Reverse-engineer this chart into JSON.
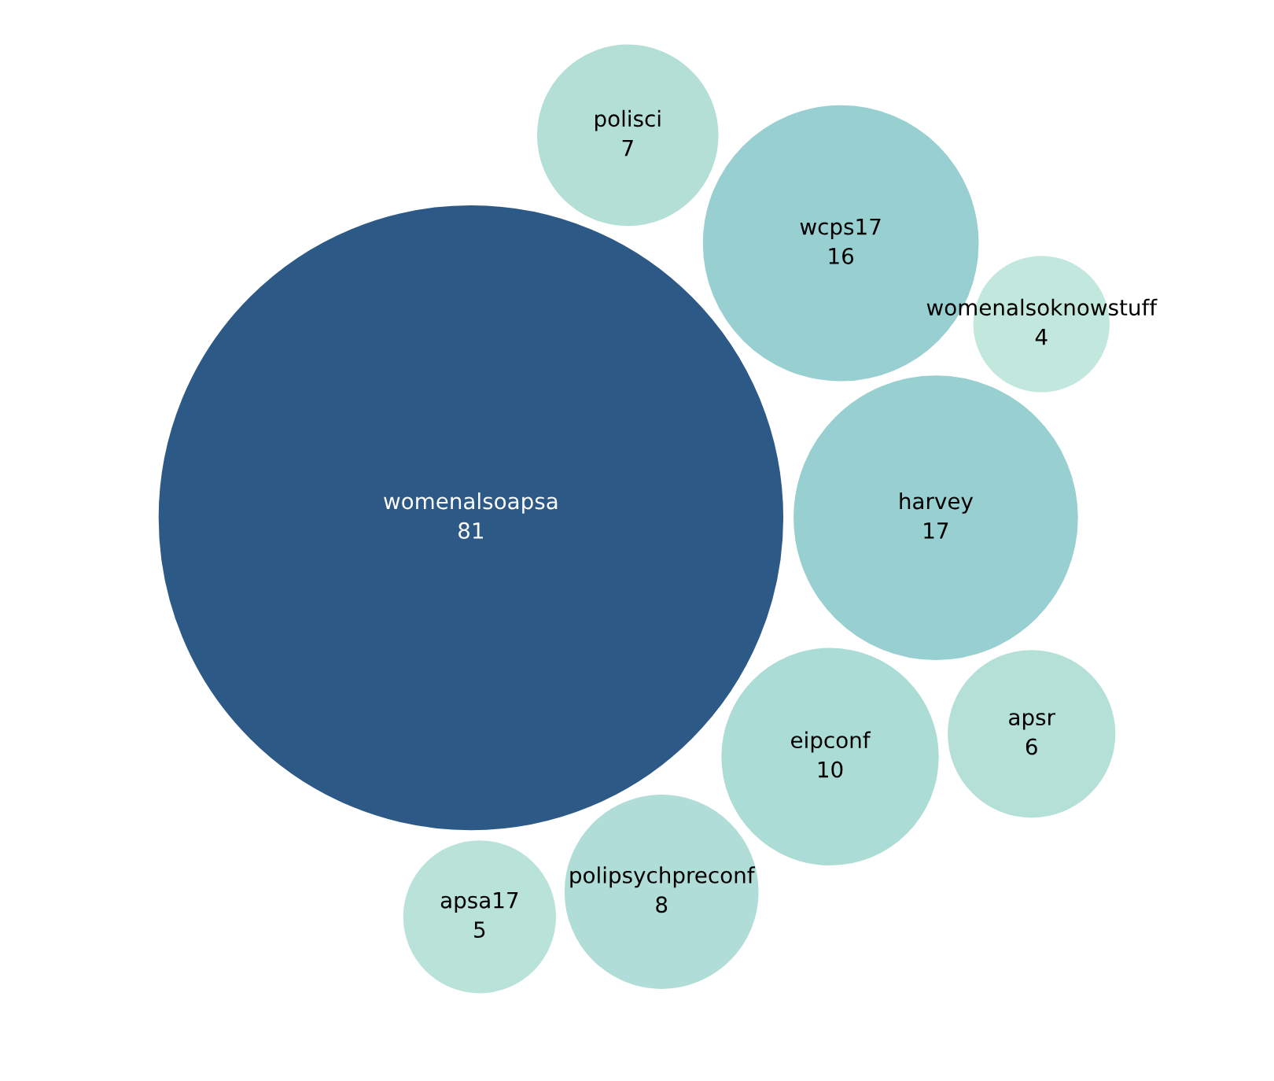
{
  "chart_data": {
    "type": "other",
    "categories": [
      "womenalsoapsa",
      "harvey",
      "wcps17",
      "eipconf",
      "polipsychpreconf",
      "polisci",
      "apsr",
      "apsa17",
      "womenalsoknowstuff"
    ],
    "values": [
      81,
      17,
      16,
      10,
      8,
      7,
      6,
      5,
      4
    ],
    "colors": [
      "#2d5986",
      "#98cfd1",
      "#98cfd1",
      "#acdcd6",
      "#b0ddd7",
      "#b3dfd6",
      "#b5e0d7",
      "#b9e2d9",
      "#c2e7dc"
    ],
    "data_labels": true
  }
}
